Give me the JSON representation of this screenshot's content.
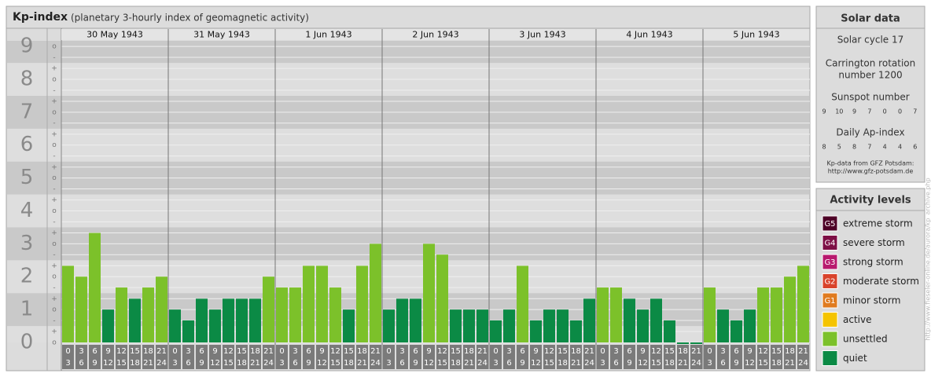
{
  "chart_data": {
    "type": "bar",
    "title": "Kp-index",
    "subtitle": "(planetary 3-hourly index of geomagnetic activity)",
    "days": [
      "30 May 1943",
      "31 May 1943",
      "1 Jun 1943",
      "2 Jun 1943",
      "3 Jun 1943",
      "4 Jun 1943",
      "5 Jun 1943"
    ],
    "hours": [
      [
        "0",
        "3"
      ],
      [
        "3",
        "6"
      ],
      [
        "6",
        "9"
      ],
      [
        "9",
        "12"
      ],
      [
        "12",
        "15"
      ],
      [
        "15",
        "18"
      ],
      [
        "18",
        "21"
      ],
      [
        "21",
        "24"
      ]
    ],
    "values": [
      2.33,
      2,
      3.33,
      1,
      1.67,
      1.33,
      1.67,
      2,
      1,
      0.67,
      1.33,
      1,
      1.33,
      1.33,
      1.33,
      2,
      1.67,
      1.67,
      2.33,
      2.33,
      1.67,
      1,
      2.33,
      3,
      1,
      1.33,
      1.33,
      3,
      2.67,
      1,
      1,
      1,
      0.67,
      1,
      2.33,
      0.67,
      1,
      1,
      0.67,
      1.33,
      1.67,
      1.67,
      1.33,
      1,
      1.33,
      0.67,
      0,
      0,
      1.67,
      1,
      0.67,
      1,
      1.67,
      1.67,
      2,
      2.33
    ],
    "colors": [
      "#7cc12a",
      "#7cc12a",
      "#7cc12a",
      "#0b8a45",
      "#7cc12a",
      "#0b8a45",
      "#7cc12a",
      "#7cc12a",
      "#0b8a45",
      "#0b8a45",
      "#0b8a45",
      "#0b8a45",
      "#0b8a45",
      "#0b8a45",
      "#0b8a45",
      "#7cc12a",
      "#7cc12a",
      "#7cc12a",
      "#7cc12a",
      "#7cc12a",
      "#7cc12a",
      "#0b8a45",
      "#7cc12a",
      "#7cc12a",
      "#0b8a45",
      "#0b8a45",
      "#0b8a45",
      "#7cc12a",
      "#7cc12a",
      "#0b8a45",
      "#0b8a45",
      "#0b8a45",
      "#0b8a45",
      "#0b8a45",
      "#7cc12a",
      "#0b8a45",
      "#0b8a45",
      "#0b8a45",
      "#0b8a45",
      "#0b8a45",
      "#7cc12a",
      "#7cc12a",
      "#0b8a45",
      "#0b8a45",
      "#0b8a45",
      "#0b8a45",
      "#0b8a45",
      "#0b8a45",
      "#7cc12a",
      "#0b8a45",
      "#0b8a45",
      "#0b8a45",
      "#7cc12a",
      "#7cc12a",
      "#7cc12a",
      "#7cc12a"
    ],
    "ylim": [
      0,
      9.17
    ],
    "yticks": [
      0,
      1,
      2,
      3,
      4,
      5,
      6,
      7,
      8,
      9
    ],
    "minor_ticks": [
      {
        "value": 0,
        "label": "o"
      },
      {
        "value": 0.33,
        "label": "+"
      },
      {
        "value": 0.67,
        "label": "-"
      },
      {
        "value": 1,
        "label": "o"
      },
      {
        "value": 1.33,
        "label": "+"
      },
      {
        "value": 1.67,
        "label": "-"
      },
      {
        "value": 2,
        "label": "o"
      },
      {
        "value": 2.33,
        "label": "+"
      },
      {
        "value": 2.67,
        "label": "-"
      },
      {
        "value": 3,
        "label": "o"
      },
      {
        "value": 3.33,
        "label": "+"
      },
      {
        "value": 3.67,
        "label": "-"
      },
      {
        "value": 4,
        "label": "o"
      },
      {
        "value": 4.33,
        "label": "+"
      },
      {
        "value": 4.67,
        "label": "-"
      },
      {
        "value": 5,
        "label": "o"
      },
      {
        "value": 5.33,
        "label": "+"
      },
      {
        "value": 5.67,
        "label": "-"
      },
      {
        "value": 6,
        "label": "o"
      },
      {
        "value": 6.33,
        "label": "+"
      },
      {
        "value": 6.67,
        "label": "-"
      },
      {
        "value": 7,
        "label": "o"
      },
      {
        "value": 7.33,
        "label": "+"
      },
      {
        "value": 7.67,
        "label": "-"
      },
      {
        "value": 8,
        "label": "o"
      },
      {
        "value": 8.33,
        "label": "+"
      },
      {
        "value": 8.67,
        "label": "-"
      },
      {
        "value": 9,
        "label": "o"
      }
    ],
    "grid": true
  },
  "solar_data": {
    "title": "Solar data",
    "cycle": "Solar cycle 17",
    "carrington": [
      "Carrington rotation",
      "number 1200"
    ],
    "sunspot_title": "Sunspot number",
    "sunspot_numbers": [
      9,
      10,
      9,
      7,
      0,
      0,
      7
    ],
    "ap_title": "Daily Ap-index",
    "ap_index": [
      8,
      5,
      8,
      7,
      4,
      4,
      6
    ],
    "source": "Kp-data from GFZ Potsdam:",
    "source_url": "http://www.gfz-potsdam.de"
  },
  "activity_levels": {
    "title": "Activity levels",
    "items": [
      {
        "code": "G5",
        "label": "extreme storm",
        "color": "#4d0026"
      },
      {
        "code": "G4",
        "label": "severe storm",
        "color": "#7d0f45"
      },
      {
        "code": "G3",
        "label": "strong storm",
        "color": "#b8196e"
      },
      {
        "code": "G2",
        "label": "moderate storm",
        "color": "#d9432b"
      },
      {
        "code": "G1",
        "label": "minor storm",
        "color": "#e07b1f"
      },
      {
        "label": "active",
        "color": "#f5c400"
      },
      {
        "label": "unsettled",
        "color": "#7cc12a"
      },
      {
        "label": "quiet",
        "color": "#0b8a45"
      }
    ]
  },
  "watermark": "http://www.fieseler-online.de/aurora/kp_archive.php"
}
